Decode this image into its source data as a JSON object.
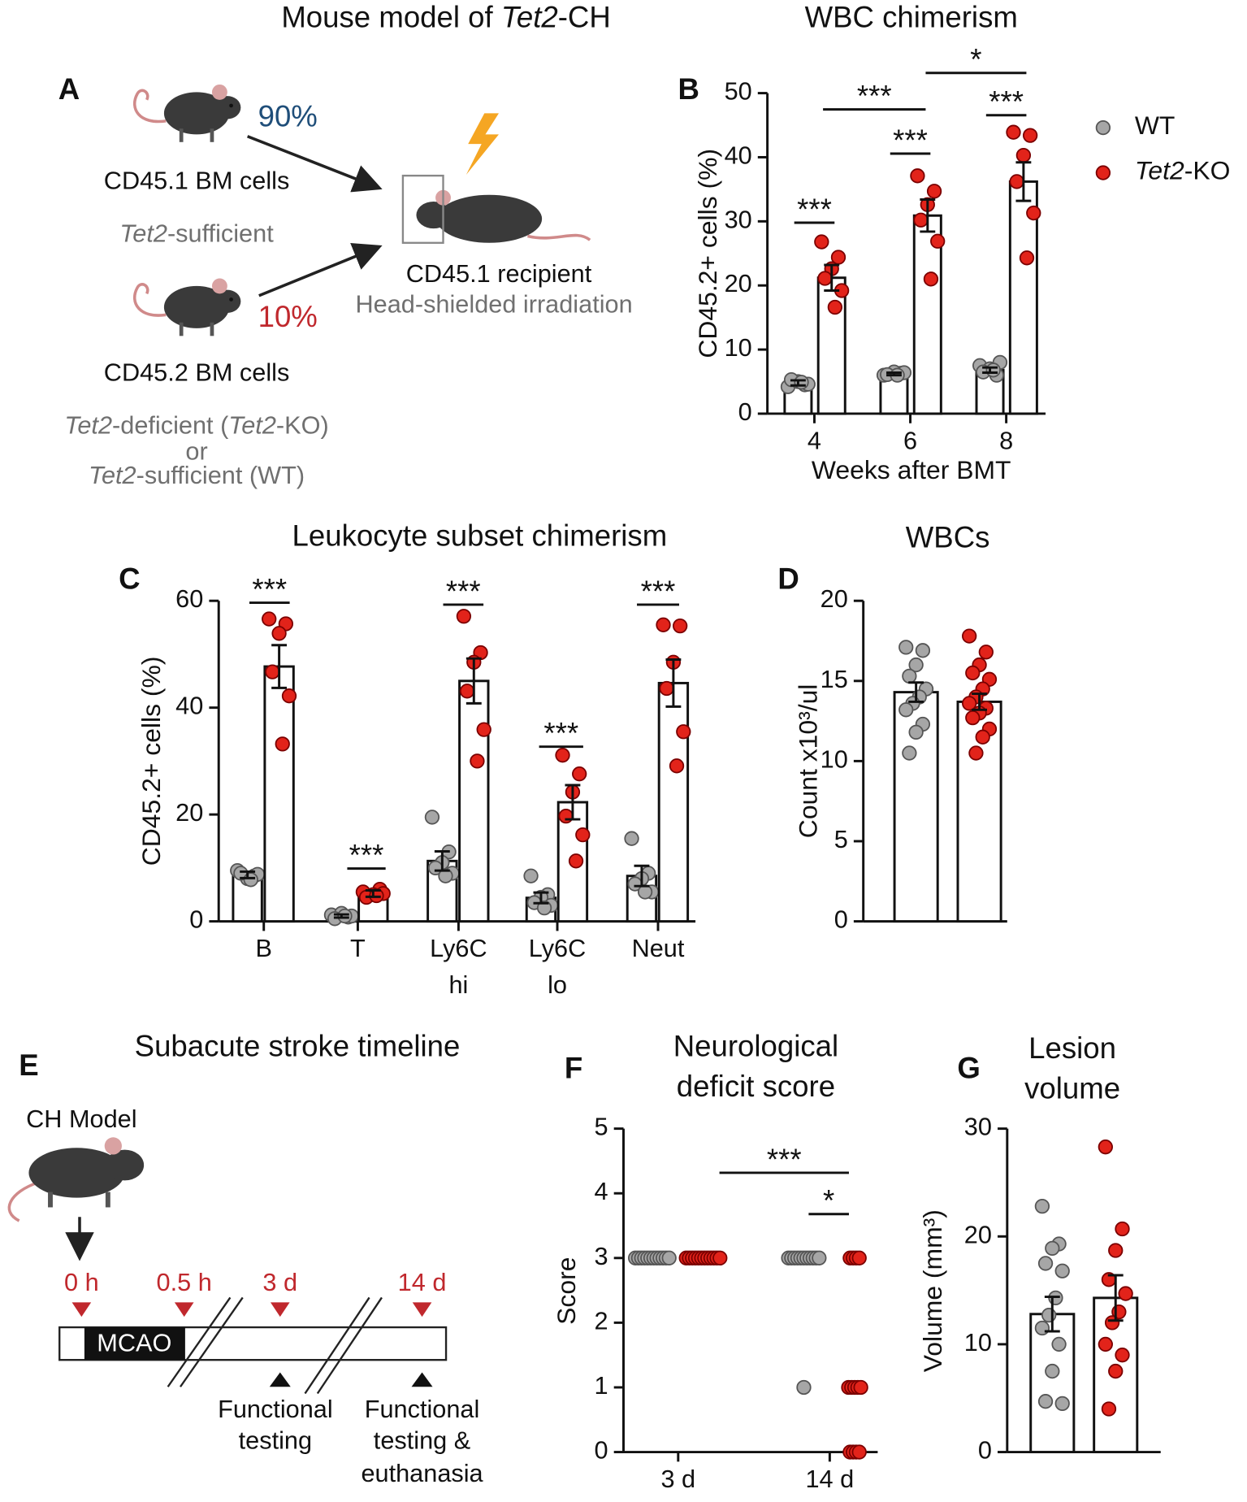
{
  "chart_data": [
    {
      "type": "bar",
      "letter": "B",
      "title_lines": [
        "WBC chimerism"
      ],
      "y_label": "CD45.2+ cells (%)",
      "x_label": "Weeks after BMT",
      "categories": [
        [
          "4"
        ],
        [
          "6"
        ],
        [
          "8"
        ]
      ],
      "ylim": [
        0,
        50
      ],
      "yticks": [
        0,
        10,
        20,
        30,
        40,
        50
      ],
      "legend": "right",
      "series": [
        {
          "name": "WT",
          "color": "#a6a6a6",
          "values": [
            4.8,
            6.2,
            6.8
          ],
          "errors": [
            0.4,
            0.2,
            0.4
          ],
          "points": [
            [
              4.2,
              4.5,
              5.0,
              5.3,
              4.6,
              4.9
            ],
            [
              6.0,
              6.3,
              6.5,
              6.1,
              6.4,
              6.0
            ],
            [
              7.5,
              6.0,
              7.0,
              6.5,
              8.0,
              6.8
            ]
          ]
        },
        {
          "name": "Tet2-KO",
          "color": "#e2231a",
          "values": [
            21.2,
            30.9,
            36.2
          ],
          "errors": [
            2.0,
            2.5,
            3.0
          ],
          "points": [
            [
              26.8,
              24.4,
              22.6,
              21.1,
              19.2,
              16.6
            ],
            [
              37.1,
              34.7,
              32.6,
              30.2,
              26.9,
              21.0
            ],
            [
              43.9,
              43.4,
              40.3,
              36.2,
              31.3,
              24.3
            ]
          ]
        }
      ],
      "annotations": [
        "***",
        "***",
        "***",
        "***",
        "*"
      ]
    },
    {
      "type": "bar",
      "letter": "C",
      "title_lines": [
        "Leukocyte subset chimerism"
      ],
      "y_label": "CD45.2+ cells (%)",
      "categories": [
        [
          "B"
        ],
        [
          "T"
        ],
        [
          "Ly6C",
          "hi"
        ],
        [
          "Ly6C",
          "lo"
        ],
        [
          "Neut"
        ]
      ],
      "ylim": [
        0,
        60
      ],
      "yticks": [
        0,
        20,
        40,
        60
      ],
      "series": [
        {
          "color": "#a6a6a6",
          "values": [
            8.7,
            1.0,
            11.3,
            4.4,
            8.5
          ],
          "errors": [
            0.6,
            0.3,
            1.8,
            1.0,
            1.9
          ],
          "points": [
            [
              9.5,
              8.5,
              8.0,
              9.0,
              8.8,
              7.8
            ],
            [
              1.2,
              0.8,
              1.5,
              0.5,
              1.0,
              1.0
            ],
            [
              19.5,
              13.0,
              11.0,
              10.0,
              9.0,
              8.5
            ],
            [
              8.5,
              5.0,
              4.5,
              3.5,
              3.0,
              2.5
            ],
            [
              15.5,
              9.0,
              8.0,
              7.0,
              5.5,
              5.5
            ]
          ]
        },
        {
          "color": "#e2231a",
          "values": [
            47.7,
            5.2,
            45.0,
            22.3,
            44.6
          ],
          "errors": [
            4.0,
            0.6,
            4.2,
            3.2,
            4.4
          ],
          "points": [
            [
              56.6,
              55.7,
              53.9,
              46.7,
              42.2,
              33.2
            ],
            [
              5.5,
              6.0,
              5.0,
              4.5,
              5.2,
              4.8
            ],
            [
              57.1,
              50.3,
              48.5,
              43.1,
              35.9,
              30.0
            ],
            [
              31.1,
              27.6,
              24.2,
              19.7,
              16.2,
              11.3
            ],
            [
              55.5,
              55.3,
              48.5,
              43.6,
              35.5,
              29.1
            ]
          ]
        }
      ],
      "annotations": [
        "***",
        "***",
        "***",
        "***",
        "***"
      ]
    },
    {
      "type": "bar",
      "letter": "D",
      "title_lines": [
        "WBCs"
      ],
      "y_label": "Count x10³/ul",
      "ylim": [
        0,
        20
      ],
      "yticks": [
        0,
        5,
        10,
        15,
        20
      ],
      "series": [
        {
          "color": "#a6a6a6",
          "values": [
            14.3
          ],
          "errors": [
            0.6
          ],
          "points": [
            [
              17.1,
              16.9,
              16.0,
              15.3,
              14.5,
              14.0,
              13.6,
              13.2,
              12.3,
              11.8,
              10.5
            ]
          ]
        },
        {
          "color": "#e2231a",
          "values": [
            13.7
          ],
          "errors": [
            0.5
          ],
          "points": [
            [
              17.8,
              16.8,
              16.0,
              15.5,
              15.1,
              14.5,
              14.0,
              13.6,
              13.3,
              13.0,
              12.7,
              12.0,
              11.5,
              10.5
            ]
          ]
        }
      ]
    },
    {
      "type": "dot",
      "letter": "F",
      "title_lines": [
        "Neurological",
        "deficit score"
      ],
      "y_label": "Score",
      "categories": [
        [
          "3 d"
        ],
        [
          "14 d"
        ]
      ],
      "ylim": [
        0,
        5
      ],
      "yticks": [
        0,
        1,
        2,
        3,
        4,
        5
      ],
      "series": [
        {
          "color": "#a6a6a6",
          "points": [
            [
              3,
              3,
              3,
              3,
              3,
              3,
              3,
              3,
              3,
              3,
              3,
              3
            ],
            [
              3,
              3,
              3,
              3,
              3,
              3,
              3,
              3,
              3,
              3,
              3,
              1
            ]
          ]
        },
        {
          "color": "#e2231a",
          "points": [
            [
              3,
              3,
              3,
              3,
              3,
              3,
              3,
              3,
              3,
              3,
              3,
              3
            ],
            [
              3,
              3,
              3,
              3,
              1,
              1,
              1,
              1,
              1,
              0,
              0,
              0,
              0
            ]
          ]
        }
      ],
      "annotations": [
        "***",
        "*"
      ]
    },
    {
      "type": "bar",
      "letter": "G",
      "title_lines": [
        "Lesion",
        "volume"
      ],
      "y_label": "Volume (mm³)",
      "ylim": [
        0,
        30
      ],
      "yticks": [
        0,
        10,
        20,
        30
      ],
      "series": [
        {
          "color": "#a6a6a6",
          "values": [
            12.8
          ],
          "errors": [
            1.6
          ],
          "points": [
            [
              22.8,
              19.3,
              18.9,
              17.5,
              16.8,
              14.3,
              12.7,
              11.5,
              10.0,
              7.5,
              4.7,
              4.5
            ]
          ]
        },
        {
          "color": "#e2231a",
          "values": [
            14.3
          ],
          "errors": [
            2.1
          ],
          "points": [
            [
              28.3,
              20.7,
              18.7,
              16.0,
              14.7,
              13.0,
              12.0,
              10.0,
              9.0,
              7.5,
              4.0
            ]
          ]
        }
      ]
    }
  ],
  "diagram_a": {
    "letter": "A",
    "title": "Mouse model of Tet2-CH",
    "donor1": {
      "percent": "90%",
      "label": "CD45.1 BM cells",
      "note": "Tet2-sufficient"
    },
    "donor2": {
      "percent": "10%",
      "label": "CD45.2 BM cells",
      "note_lines": [
        "Tet2-deficient (Tet2-KO)",
        "or",
        "Tet2-sufficient (WT)"
      ]
    },
    "recipient": {
      "label": "CD45.1 recipient",
      "note": "Head-shielded irradiation"
    }
  },
  "diagram_e": {
    "letter": "E",
    "title": "Subacute stroke timeline",
    "model": "CH Model",
    "timepoints": [
      "0 h",
      "0.5 h",
      "3 d",
      "14 d"
    ],
    "procedure": "MCAO",
    "event1_lines": [
      "Functional",
      "testing"
    ],
    "event2_lines": [
      "Functional",
      "testing &",
      "euthanasia"
    ]
  }
}
